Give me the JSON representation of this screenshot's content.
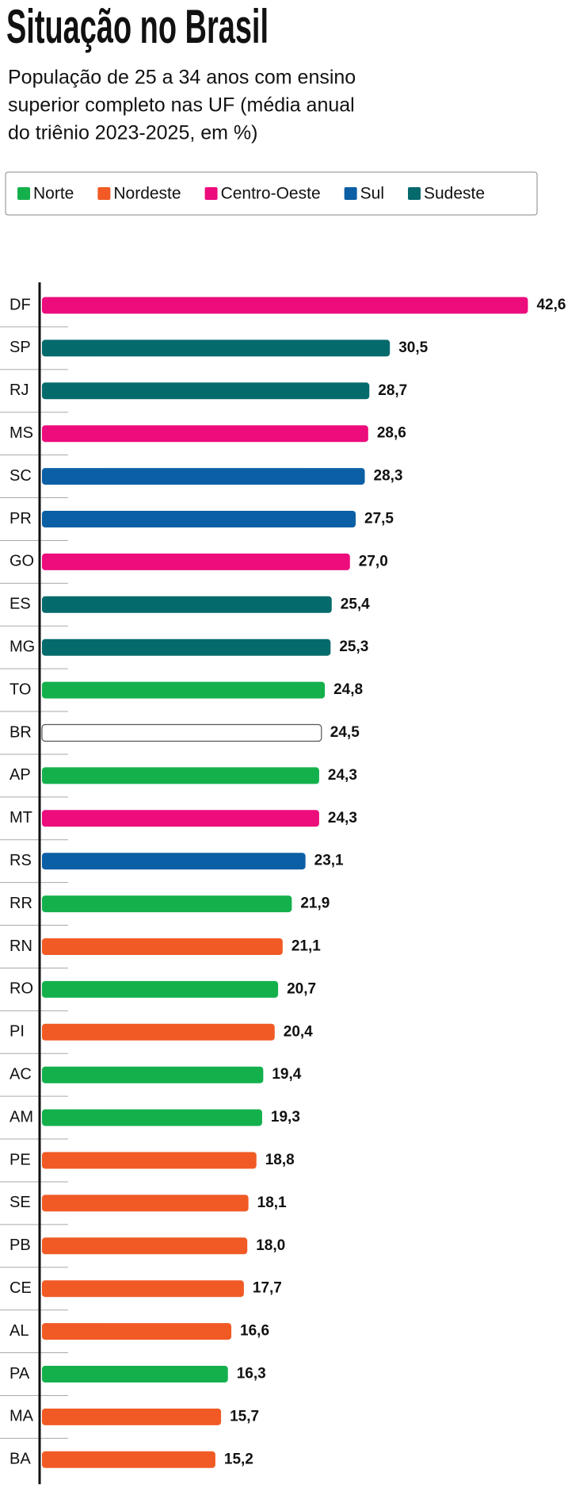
{
  "chart_data": {
    "type": "bar",
    "orientation": "horizontal",
    "title": "Situação no Brasil",
    "subtitle_lines": [
      "População de 25 a 34 anos com ensino",
      "superior completo nas UF (média anual",
      "do triênio 2023-2025, em %)"
    ],
    "legend": [
      {
        "name": "Norte",
        "color": "#14b04c"
      },
      {
        "name": "Nordeste",
        "color": "#f15a24"
      },
      {
        "name": "Centro-Oeste",
        "color": "#ec0c7c"
      },
      {
        "name": "Sul",
        "color": "#0b5fa5"
      },
      {
        "name": "Sudeste",
        "color": "#056a6c"
      }
    ],
    "categories": [
      "DF",
      "SP",
      "RJ",
      "MS",
      "SC",
      "PR",
      "GO",
      "ES",
      "MG",
      "TO",
      "BR",
      "AP",
      "MT",
      "RS",
      "RR",
      "RN",
      "RO",
      "PI",
      "AC",
      "AM",
      "PE",
      "SE",
      "PB",
      "CE",
      "AL",
      "PA",
      "MA",
      "BA"
    ],
    "values": [
      42.6,
      30.5,
      28.7,
      28.6,
      28.3,
      27.5,
      27.0,
      25.4,
      25.3,
      24.8,
      24.5,
      24.3,
      24.3,
      23.1,
      21.9,
      21.1,
      20.7,
      20.4,
      19.4,
      19.3,
      18.8,
      18.1,
      18.0,
      17.7,
      16.6,
      16.3,
      15.7,
      15.2
    ],
    "value_labels": [
      "42,6",
      "30,5",
      "28,7",
      "28,6",
      "28,3",
      "27,5",
      "27,0",
      "25,4",
      "25,3",
      "24,8",
      "24,5",
      "24,3",
      "24,3",
      "23,1",
      "21,9",
      "21,1",
      "20,7",
      "20,4",
      "19,4",
      "19,3",
      "18,8",
      "18,1",
      "18,0",
      "17,7",
      "16,6",
      "16,3",
      "15,7",
      "15,2"
    ],
    "colors": [
      "#ec0c7c",
      "#056a6c",
      "#056a6c",
      "#ec0c7c",
      "#0b5fa5",
      "#0b5fa5",
      "#ec0c7c",
      "#056a6c",
      "#056a6c",
      "#14b04c",
      "#ffffff",
      "#14b04c",
      "#ec0c7c",
      "#0b5fa5",
      "#14b04c",
      "#f15a24",
      "#14b04c",
      "#f15a24",
      "#14b04c",
      "#14b04c",
      "#f15a24",
      "#f15a24",
      "#f15a24",
      "#f15a24",
      "#f15a24",
      "#14b04c",
      "#f15a24",
      "#f15a24"
    ],
    "xlim": [
      0,
      45
    ]
  }
}
